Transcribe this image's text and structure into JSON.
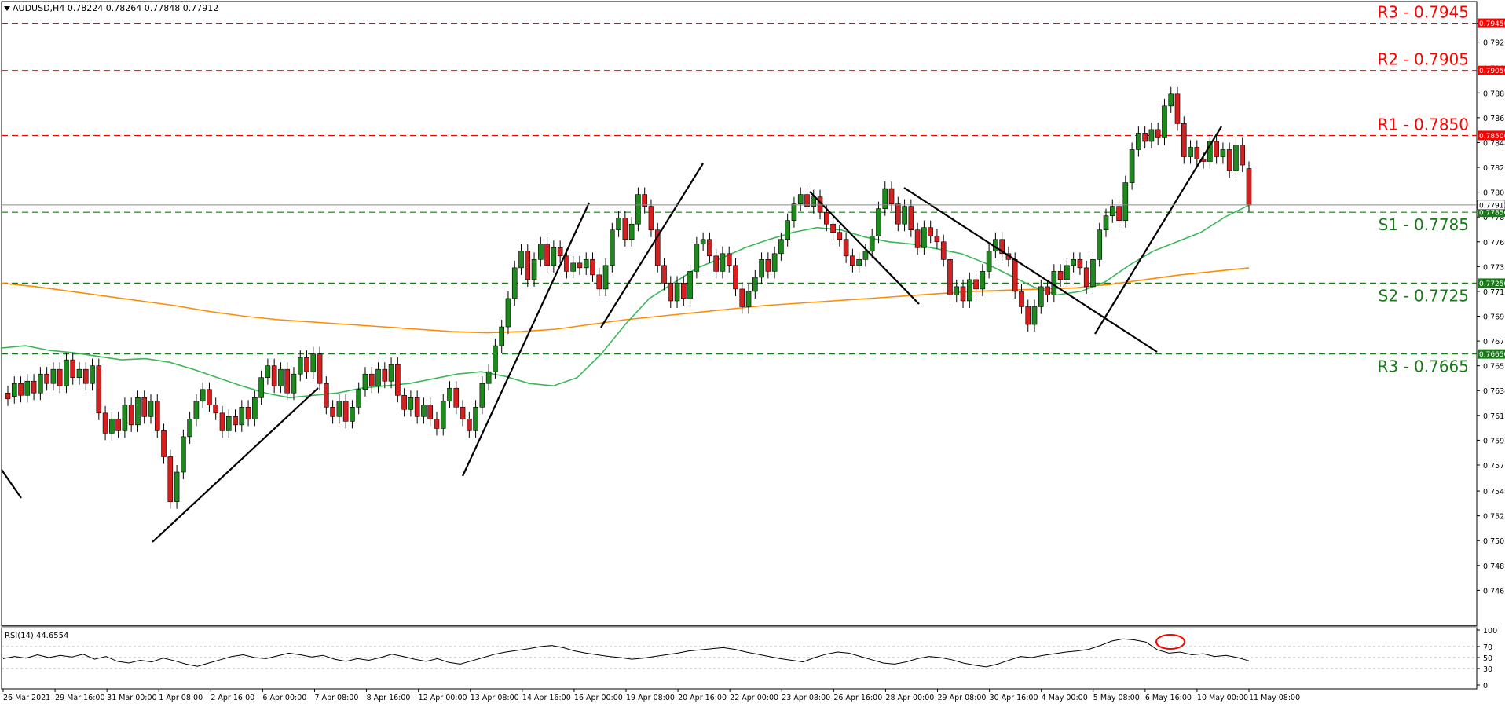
{
  "header": {
    "symbol_label": "AUDUSD,H4  0.78224 0.78264 0.77848 0.77912"
  },
  "chart_data": {
    "type": "candlestick",
    "price_ylim": [
      0.7436,
      0.7962
    ],
    "price_ticks": [
      "0.79450",
      "0.79290",
      "0.79070",
      "0.78860",
      "0.78650",
      "0.78440",
      "0.78230",
      "0.78020",
      "0.77810",
      "0.77600",
      "0.77390",
      "0.77180",
      "0.76970",
      "0.76760",
      "0.76550",
      "0.76340",
      "0.76130",
      "0.75920",
      "0.75710",
      "0.75490",
      "0.75280",
      "0.75070",
      "0.74860",
      "0.74650"
    ],
    "levels": [
      {
        "label": "R3 - 0.7945",
        "value": 0.7945,
        "tag": "0.79450",
        "color": "#ff0000"
      },
      {
        "label": "R2 - 0.7905",
        "value": 0.7905,
        "tag": "0.79050",
        "color": "#ff0000"
      },
      {
        "label": "R1 - 0.7850",
        "value": 0.785,
        "tag": "0.78500",
        "color": "#ff0000"
      },
      {
        "label": "S1 - 0.7785",
        "value": 0.7785,
        "tag": "0.77850",
        "color": "#1a7a1a"
      },
      {
        "label": "S2 - 0.7725",
        "value": 0.7725,
        "tag": "0.77250",
        "color": "#1a7a1a"
      },
      {
        "label": "R3 - 0.7665",
        "value": 0.7665,
        "tag": "0.76650",
        "color": "#1a7a1a"
      }
    ],
    "current_price": {
      "value": 0.77912,
      "tag": "0.77912"
    },
    "x_labels": [
      "26 Mar 2021",
      "29 Mar 16:00",
      "31 Mar 00:00",
      "1 Apr 08:00",
      "2 Apr 16:00",
      "6 Apr 00:00",
      "7 Apr 08:00",
      "8 Apr 16:00",
      "12 Apr 00:00",
      "13 Apr 08:00",
      "14 Apr 16:00",
      "16 Apr 00:00",
      "19 Apr 08:00",
      "20 Apr 16:00",
      "22 Apr 00:00",
      "23 Apr 08:00",
      "26 Apr 16:00",
      "28 Apr 00:00",
      "29 Apr 08:00",
      "30 Apr 16:00",
      "4 May 00:00",
      "5 May 08:00",
      "6 May 16:00",
      "10 May 00:00",
      "11 May 08:00"
    ],
    "candles": [
      [
        0.7632,
        0.7627
      ],
      [
        0.7629,
        0.764
      ],
      [
        0.764,
        0.763
      ],
      [
        0.763,
        0.7642
      ],
      [
        0.7642,
        0.7632
      ],
      [
        0.7632,
        0.7648
      ],
      [
        0.7648,
        0.764
      ],
      [
        0.764,
        0.7652
      ],
      [
        0.7652,
        0.7638
      ],
      [
        0.7638,
        0.766
      ],
      [
        0.766,
        0.7645
      ],
      [
        0.7645,
        0.7652
      ],
      [
        0.7652,
        0.764
      ],
      [
        0.764,
        0.7655
      ],
      [
        0.7655,
        0.7615
      ],
      [
        0.7615,
        0.7598
      ],
      [
        0.7598,
        0.761
      ],
      [
        0.761,
        0.76
      ],
      [
        0.76,
        0.7622
      ],
      [
        0.7622,
        0.7605
      ],
      [
        0.7605,
        0.7628
      ],
      [
        0.7628,
        0.7612
      ],
      [
        0.7612,
        0.7625
      ],
      [
        0.7625,
        0.76
      ],
      [
        0.76,
        0.7578
      ],
      [
        0.7578,
        0.754
      ],
      [
        0.754,
        0.7565
      ],
      [
        0.7565,
        0.7595
      ],
      [
        0.7595,
        0.761
      ],
      [
        0.761,
        0.7625
      ],
      [
        0.7625,
        0.7635
      ],
      [
        0.7635,
        0.7622
      ],
      [
        0.7622,
        0.7615
      ],
      [
        0.7615,
        0.76
      ],
      [
        0.76,
        0.7612
      ],
      [
        0.7612,
        0.7605
      ],
      [
        0.7605,
        0.762
      ],
      [
        0.762,
        0.761
      ],
      [
        0.761,
        0.7628
      ],
      [
        0.7628,
        0.7645
      ],
      [
        0.7645,
        0.7655
      ],
      [
        0.7655,
        0.7638
      ],
      [
        0.7638,
        0.7652
      ],
      [
        0.7652,
        0.7632
      ],
      [
        0.7632,
        0.7648
      ],
      [
        0.7648,
        0.7662
      ],
      [
        0.7662,
        0.765
      ],
      [
        0.765,
        0.7665
      ],
      [
        0.7665,
        0.764
      ],
      [
        0.764,
        0.762
      ],
      [
        0.762,
        0.7612
      ],
      [
        0.7612,
        0.7625
      ],
      [
        0.7625,
        0.7608
      ],
      [
        0.7608,
        0.762
      ],
      [
        0.762,
        0.7635
      ],
      [
        0.7635,
        0.7648
      ],
      [
        0.7648,
        0.7638
      ],
      [
        0.7638,
        0.7652
      ],
      [
        0.7652,
        0.7642
      ],
      [
        0.7642,
        0.7656
      ],
      [
        0.7656,
        0.763
      ],
      [
        0.763,
        0.7618
      ],
      [
        0.7618,
        0.7628
      ],
      [
        0.7628,
        0.7612
      ],
      [
        0.7612,
        0.7622
      ],
      [
        0.7622,
        0.761
      ],
      [
        0.761,
        0.7602
      ],
      [
        0.7602,
        0.7625
      ],
      [
        0.7625,
        0.7636
      ],
      [
        0.7636,
        0.762
      ],
      [
        0.762,
        0.761
      ],
      [
        0.761,
        0.76
      ],
      [
        0.76,
        0.762
      ],
      [
        0.762,
        0.764
      ],
      [
        0.764,
        0.765
      ],
      [
        0.765,
        0.7672
      ],
      [
        0.7672,
        0.7688
      ],
      [
        0.7688,
        0.7712
      ],
      [
        0.7712,
        0.7738
      ],
      [
        0.7738,
        0.7752
      ],
      [
        0.7752,
        0.7728
      ],
      [
        0.7728,
        0.7745
      ],
      [
        0.7745,
        0.7758
      ],
      [
        0.7758,
        0.774
      ],
      [
        0.774,
        0.7755
      ],
      [
        0.7755,
        0.7748
      ],
      [
        0.7748,
        0.7735
      ],
      [
        0.7735,
        0.7742
      ],
      [
        0.7742,
        0.7738
      ],
      [
        0.7738,
        0.7745
      ],
      [
        0.7745,
        0.7732
      ],
      [
        0.7732,
        0.772
      ],
      [
        0.772,
        0.774
      ],
      [
        0.774,
        0.777
      ],
      [
        0.777,
        0.778
      ],
      [
        0.778,
        0.7762
      ],
      [
        0.7762,
        0.7775
      ],
      [
        0.7775,
        0.78
      ],
      [
        0.78,
        0.779
      ],
      [
        0.779,
        0.777
      ],
      [
        0.777,
        0.774
      ],
      [
        0.774,
        0.7725
      ],
      [
        0.7725,
        0.771
      ],
      [
        0.771,
        0.7725
      ],
      [
        0.7725,
        0.7712
      ],
      [
        0.7712,
        0.7735
      ],
      [
        0.7735,
        0.7758
      ],
      [
        0.7758,
        0.7762
      ],
      [
        0.7762,
        0.7748
      ],
      [
        0.7748,
        0.7735
      ],
      [
        0.7735,
        0.775
      ],
      [
        0.775,
        0.774
      ],
      [
        0.774,
        0.772
      ],
      [
        0.772,
        0.7705
      ],
      [
        0.7705,
        0.7718
      ],
      [
        0.7718,
        0.773
      ],
      [
        0.773,
        0.7745
      ],
      [
        0.7745,
        0.7735
      ],
      [
        0.7735,
        0.775
      ],
      [
        0.775,
        0.7762
      ],
      [
        0.7762,
        0.7778
      ],
      [
        0.7778,
        0.7792
      ],
      [
        0.7792,
        0.78
      ],
      [
        0.78,
        0.779
      ],
      [
        0.779,
        0.7798
      ],
      [
        0.7798,
        0.7785
      ],
      [
        0.7785,
        0.7775
      ],
      [
        0.7775,
        0.7768
      ],
      [
        0.7768,
        0.7762
      ],
      [
        0.7762,
        0.7748
      ],
      [
        0.7748,
        0.774
      ],
      [
        0.774,
        0.7745
      ],
      [
        0.7745,
        0.7752
      ],
      [
        0.7752,
        0.7765
      ],
      [
        0.7765,
        0.7788
      ],
      [
        0.7788,
        0.7805
      ],
      [
        0.7805,
        0.7792
      ],
      [
        0.7792,
        0.7775
      ],
      [
        0.7775,
        0.779
      ],
      [
        0.779,
        0.777
      ],
      [
        0.777,
        0.7755
      ],
      [
        0.7755,
        0.7772
      ],
      [
        0.7772,
        0.7765
      ],
      [
        0.7765,
        0.776
      ],
      [
        0.776,
        0.7745
      ],
      [
        0.7745,
        0.7715
      ],
      [
        0.7715,
        0.7722
      ],
      [
        0.7722,
        0.771
      ],
      [
        0.771,
        0.7728
      ],
      [
        0.7728,
        0.772
      ],
      [
        0.772,
        0.7735
      ],
      [
        0.7735,
        0.7752
      ],
      [
        0.7752,
        0.7762
      ],
      [
        0.7762,
        0.775
      ],
      [
        0.775,
        0.7745
      ],
      [
        0.7745,
        0.7718
      ],
      [
        0.7718,
        0.7705
      ],
      [
        0.7705,
        0.769
      ],
      [
        0.769,
        0.7705
      ],
      [
        0.7705,
        0.7722
      ],
      [
        0.7722,
        0.7715
      ],
      [
        0.7715,
        0.7735
      ],
      [
        0.7735,
        0.7728
      ],
      [
        0.7728,
        0.774
      ],
      [
        0.774,
        0.7745
      ],
      [
        0.7745,
        0.7738
      ],
      [
        0.7738,
        0.7722
      ],
      [
        0.7722,
        0.7745
      ],
      [
        0.7745,
        0.777
      ],
      [
        0.777,
        0.7782
      ],
      [
        0.7782,
        0.779
      ],
      [
        0.779,
        0.7778
      ],
      [
        0.7778,
        0.781
      ],
      [
        0.781,
        0.7838
      ],
      [
        0.7838,
        0.7852
      ],
      [
        0.7852,
        0.7845
      ],
      [
        0.7845,
        0.7855
      ],
      [
        0.7855,
        0.7848
      ],
      [
        0.7848,
        0.7875
      ],
      [
        0.7875,
        0.7885
      ],
      [
        0.7885,
        0.786
      ],
      [
        0.786,
        0.7832
      ],
      [
        0.7832,
        0.784
      ],
      [
        0.784,
        0.783
      ],
      [
        0.783,
        0.7828
      ],
      [
        0.7828,
        0.7845
      ],
      [
        0.7845,
        0.7832
      ],
      [
        0.7832,
        0.7838
      ],
      [
        0.7838,
        0.782
      ],
      [
        0.782,
        0.7842
      ],
      [
        0.7842,
        0.7825
      ],
      [
        0.7822,
        0.7791
      ]
    ],
    "ma_50": [
      0.767,
      0.7672,
      0.7668,
      0.7666,
      0.7663,
      0.766,
      0.7661,
      0.7658,
      0.7652,
      0.7645,
      0.7638,
      0.7632,
      0.7628,
      0.763,
      0.7632,
      0.7636,
      0.7638,
      0.764,
      0.7644,
      0.7648,
      0.765,
      0.7646,
      0.764,
      0.7638,
      0.7645,
      0.7665,
      0.769,
      0.7712,
      0.7725,
      0.7738,
      0.7746,
      0.7755,
      0.7762,
      0.7768,
      0.7772,
      0.777,
      0.7764,
      0.776,
      0.7758,
      0.7754,
      0.775,
      0.7742,
      0.7732,
      0.7722,
      0.7715,
      0.7718,
      0.7726,
      0.774,
      0.7752,
      0.776,
      0.7768,
      0.7781,
      0.7791
    ],
    "ma_200": [
      0.7725,
      0.7722,
      0.7718,
      0.7714,
      0.771,
      0.7706,
      0.7701,
      0.7697,
      0.7694,
      0.7692,
      0.769,
      0.7688,
      0.7686,
      0.7684,
      0.7683,
      0.7684,
      0.7686,
      0.769,
      0.7694,
      0.7697,
      0.77,
      0.7703,
      0.7706,
      0.7708,
      0.771,
      0.7712,
      0.7714,
      0.7716,
      0.7718,
      0.7719,
      0.772,
      0.7721,
      0.7724,
      0.7728,
      0.7732,
      0.7735,
      0.7738
    ],
    "rsi": {
      "label": "RSI(14) 44.6554",
      "ticks": [
        "100",
        "70",
        "50",
        "30",
        "0"
      ],
      "ylim": [
        0,
        100
      ],
      "levels": [
        70,
        50,
        30
      ],
      "values": [
        48,
        52,
        49,
        55,
        50,
        54,
        51,
        56,
        47,
        52,
        43,
        40,
        45,
        42,
        49,
        44,
        38,
        34,
        40,
        46,
        52,
        55,
        50,
        48,
        53,
        58,
        55,
        51,
        54,
        47,
        43,
        48,
        45,
        50,
        56,
        52,
        47,
        43,
        48,
        41,
        38,
        44,
        50,
        56,
        60,
        63,
        66,
        70,
        72,
        68,
        62,
        58,
        55,
        52,
        50,
        47,
        49,
        52,
        55,
        58,
        62,
        64,
        66,
        68,
        65,
        60,
        56,
        52,
        48,
        45,
        42,
        50,
        56,
        60,
        58,
        52,
        46,
        40,
        38,
        42,
        48,
        52,
        50,
        46,
        40,
        36,
        33,
        38,
        45,
        52,
        50,
        54,
        57,
        60,
        62,
        65,
        72,
        80,
        84,
        82,
        78,
        64,
        58,
        60,
        55,
        57,
        52,
        54,
        50,
        44
      ]
    }
  }
}
